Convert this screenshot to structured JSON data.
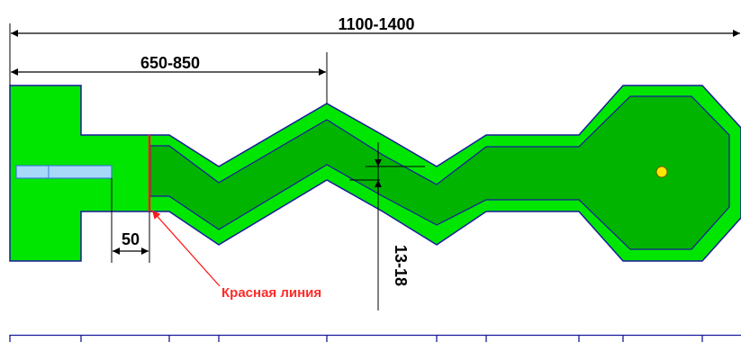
{
  "dimensions": {
    "overall_length": "1100-1400",
    "zigzag_offset": "650-850",
    "red_line_offset": "50",
    "wall_width": "13-18"
  },
  "labels": {
    "red_line": "Красная линия"
  },
  "colors": {
    "outer_green": "#00e600",
    "inner_green": "#00b400",
    "outline_blue": "#1a1a9c",
    "red_line": "#ff1a1a",
    "mat_fill": "#a8d8f8",
    "mat_border": "#3a7ad8",
    "hole": "#ffe600",
    "dimension": "#000000"
  }
}
